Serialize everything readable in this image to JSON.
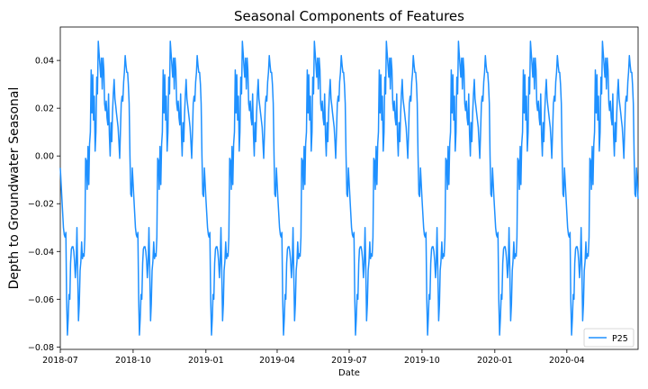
{
  "chart_data": {
    "type": "line",
    "title": "Seasonal Components of Features",
    "xlabel": "Date",
    "ylabel": "Depth to Groundwater Seasonal",
    "xlim": [
      "2018-07-01",
      "2020-06-30"
    ],
    "ylim": [
      -0.081,
      0.054
    ],
    "x_ticks": [
      "2018-07",
      "2018-10",
      "2019-01",
      "2019-04",
      "2019-07",
      "2019-10",
      "2020-01",
      "2020-04"
    ],
    "y_ticks": [
      "0.04",
      "0.02",
      "0.00",
      "−0.02",
      "−0.04",
      "−0.06",
      "−0.08"
    ],
    "y_tick_values": [
      0.04,
      0.02,
      0.0,
      -0.02,
      -0.04,
      -0.06,
      -0.08
    ],
    "grid": false,
    "legend": {
      "placement": "lower-right",
      "entries": [
        "P25"
      ]
    },
    "series": [
      {
        "name": "P25",
        "color": "#1E90FF",
        "period_days": 91,
        "start": "2018-07-01",
        "end": "2020-06-30",
        "cycle_profile": [
          [
            0,
            -0.005
          ],
          [
            2,
            -0.018
          ],
          [
            4,
            -0.03
          ],
          [
            5,
            -0.033
          ],
          [
            6,
            -0.034
          ],
          [
            7,
            -0.032
          ],
          [
            8,
            -0.06
          ],
          [
            9,
            -0.075
          ],
          [
            10,
            -0.068
          ],
          [
            11,
            -0.058
          ],
          [
            12,
            -0.06
          ],
          [
            13,
            -0.045
          ],
          [
            14,
            -0.039
          ],
          [
            15,
            -0.038
          ],
          [
            16,
            -0.038
          ],
          [
            17,
            -0.04
          ],
          [
            18,
            -0.044
          ],
          [
            19,
            -0.051
          ],
          [
            20,
            -0.045
          ],
          [
            21,
            -0.03
          ],
          [
            22,
            -0.048
          ],
          [
            23,
            -0.069
          ],
          [
            24,
            -0.062
          ],
          [
            25,
            -0.048
          ],
          [
            26,
            -0.044
          ],
          [
            27,
            -0.036
          ],
          [
            28,
            -0.043
          ],
          [
            29,
            -0.041
          ],
          [
            30,
            -0.042
          ],
          [
            31,
            -0.034
          ],
          [
            32,
            -0.001
          ],
          [
            33,
            -0.002
          ],
          [
            34,
            -0.014
          ],
          [
            35,
            0.004
          ],
          [
            36,
            -0.012
          ],
          [
            37,
            0.005
          ],
          [
            38,
            0.01
          ],
          [
            39,
            0.036
          ],
          [
            40,
            0.018
          ],
          [
            41,
            0.034
          ],
          [
            42,
            0.015
          ],
          [
            43,
            0.025
          ],
          [
            44,
            0.002
          ],
          [
            45,
            0.01
          ],
          [
            46,
            0.033
          ],
          [
            47,
            0.026
          ],
          [
            48,
            0.048
          ],
          [
            49,
            0.043
          ],
          [
            50,
            0.038
          ],
          [
            51,
            0.033
          ],
          [
            52,
            0.041
          ],
          [
            53,
            0.028
          ],
          [
            54,
            0.041
          ],
          [
            55,
            0.036
          ],
          [
            56,
            0.022
          ],
          [
            57,
            0.019
          ],
          [
            58,
            0.023
          ],
          [
            59,
            0.016
          ],
          [
            60,
            0.013
          ],
          [
            61,
            0.026
          ],
          [
            62,
            0.009
          ],
          [
            63,
            0.0
          ],
          [
            64,
            0.014
          ],
          [
            65,
            0.006
          ],
          [
            66,
            0.018
          ],
          [
            67,
            0.026
          ],
          [
            68,
            0.032
          ],
          [
            69,
            0.024
          ],
          [
            70,
            0.021
          ],
          [
            71,
            0.018
          ],
          [
            72,
            0.015
          ],
          [
            73,
            0.012
          ],
          [
            74,
            0.006
          ],
          [
            75,
            -0.001
          ],
          [
            76,
            0.01
          ],
          [
            77,
            0.022
          ],
          [
            78,
            0.025
          ],
          [
            79,
            0.023
          ],
          [
            80,
            0.031
          ],
          [
            81,
            0.035
          ],
          [
            82,
            0.042
          ],
          [
            83,
            0.038
          ],
          [
            84,
            0.035
          ],
          [
            85,
            0.035
          ],
          [
            86,
            0.03
          ],
          [
            87,
            0.022
          ],
          [
            88,
            0.0
          ],
          [
            89,
            -0.016
          ],
          [
            90,
            -0.017
          ],
          [
            91,
            -0.005
          ]
        ]
      }
    ]
  }
}
